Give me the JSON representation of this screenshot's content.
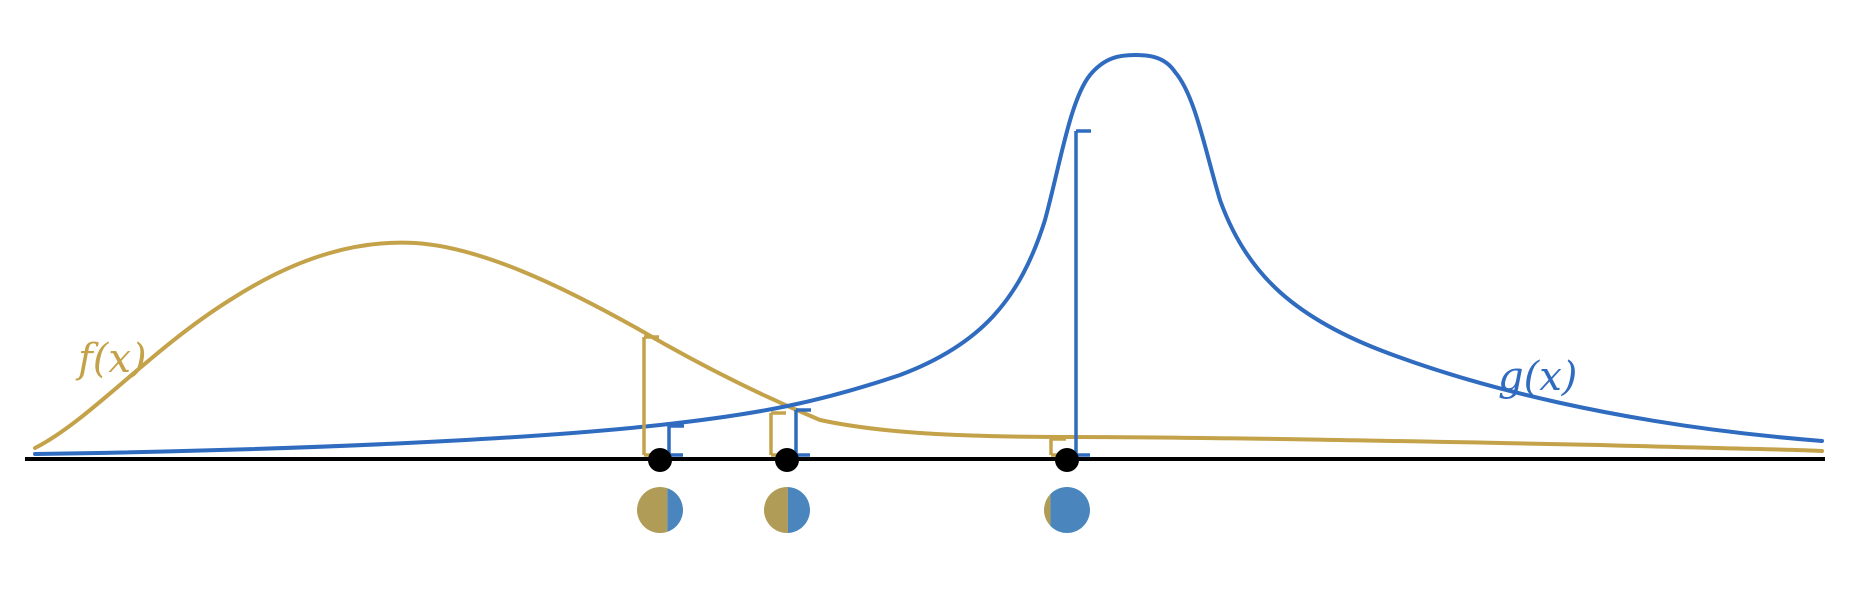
{
  "colors": {
    "f": "#c4a24a",
    "g": "#2f6bbf",
    "axis": "#000000",
    "pie_f": "#b09c57",
    "pie_g": "#4a86bd"
  },
  "labels": {
    "f": "f(x)",
    "g": "g(x)"
  },
  "samples": [
    {
      "f_share": 0.66,
      "g_share": 0.34
    },
    {
      "f_share": 0.52,
      "g_share": 0.48
    },
    {
      "f_share": 0.14,
      "g_share": 0.86
    }
  ]
}
